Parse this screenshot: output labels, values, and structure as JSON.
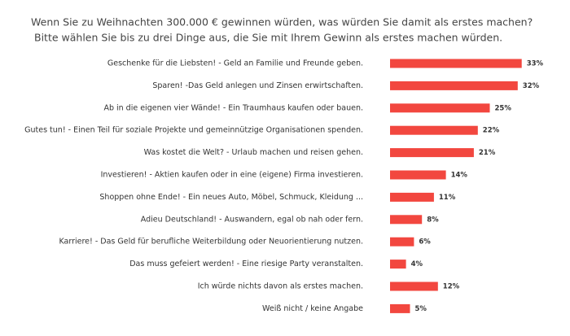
{
  "chart_data": {
    "type": "bar",
    "orientation": "horizontal",
    "title": "Wenn Sie zu Weihnachten 300.000 € gewinnen würden, was würden Sie damit als erstes machen?",
    "subtitle": "Bitte wählen Sie bis zu drei Dinge aus, die Sie mit Ihrem Gewinn als erstes machen würden.",
    "categories": [
      "Geschenke für die Liebsten! - Geld an Familie und Freunde geben.",
      "Sparen! -Das Geld anlegen und Zinsen erwirtschaften.",
      "Ab in die eigenen vier Wände! - Ein Traumhaus kaufen oder bauen.",
      "Gutes tun! - Einen Teil für soziale Projekte und gemeinnützige Organisationen spenden.",
      "Was kostet die Welt? - Urlaub machen und reisen gehen.",
      "Investieren! - Aktien kaufen oder in eine (eigene) Firma investieren.",
      "Shoppen ohne Ende! - Ein neues Auto, Möbel, Schmuck, Kleidung ...",
      "Adieu Deutschland! - Auswandern, egal ob nah oder fern.",
      "Karriere! - Das Geld für berufliche Weiterbildung oder Neuorientierung nutzen.",
      "Das muss gefeiert werden! - Eine riesige Party veranstalten.",
      "Ich würde nichts davon als erstes machen.",
      "Weiß nicht / keine Angabe"
    ],
    "values": [
      33,
      32,
      25,
      22,
      21,
      14,
      11,
      8,
      6,
      4,
      12,
      5
    ],
    "value_labels": [
      "33%",
      "32%",
      "25%",
      "22%",
      "21%",
      "14%",
      "11%",
      "8%",
      "6%",
      "4%",
      "12%",
      "5%"
    ],
    "color": "#f2473f"
  }
}
